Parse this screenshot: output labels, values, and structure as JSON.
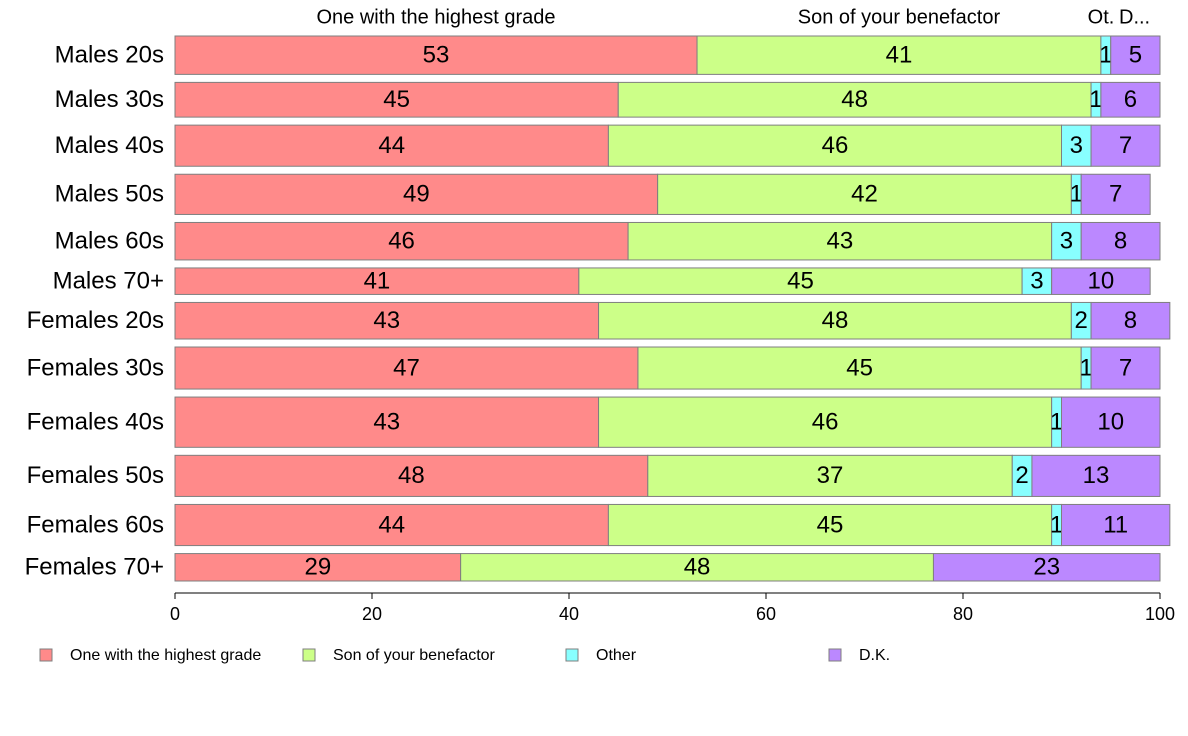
{
  "chart_data": {
    "type": "bar",
    "orientation": "horizontal",
    "stacked": true,
    "categories": [
      "Males 20s",
      "Males 30s",
      "Males 40s",
      "Males 50s",
      "Males 60s",
      "Males 70+",
      "Females 20s",
      "Females 30s",
      "Females 40s",
      "Females 50s",
      "Females 60s",
      "Females 70+"
    ],
    "category_shares": [
      4.2,
      3.8,
      4.5,
      4.4,
      4.1,
      2.9,
      4.0,
      4.6,
      5.5,
      4.5,
      4.5,
      3.0
    ],
    "series": [
      {
        "name": "One with the highest grade",
        "color": "#ff8a8a",
        "values": [
          53,
          45,
          44,
          49,
          46,
          41,
          43,
          47,
          43,
          48,
          44,
          29
        ]
      },
      {
        "name": "Son of your benefactor",
        "color": "#ccff88",
        "values": [
          41,
          48,
          46,
          42,
          43,
          45,
          48,
          45,
          46,
          37,
          45,
          48
        ]
      },
      {
        "name": "Other",
        "color": "#88ffff",
        "values": [
          1,
          1,
          3,
          1,
          3,
          3,
          2,
          1,
          1,
          2,
          1,
          0
        ]
      },
      {
        "name": "D.K.",
        "color": "#bb88ff",
        "values": [
          5,
          6,
          7,
          7,
          8,
          10,
          8,
          7,
          10,
          13,
          11,
          23
        ]
      }
    ],
    "column_headers": [
      "One with the highest grade",
      "Son of your benefactor",
      "Ot.",
      "D..."
    ],
    "xlim": [
      0,
      100
    ],
    "xticks": [
      0,
      20,
      40,
      60,
      80,
      100
    ],
    "legend_position": "bottom",
    "grid": false
  }
}
